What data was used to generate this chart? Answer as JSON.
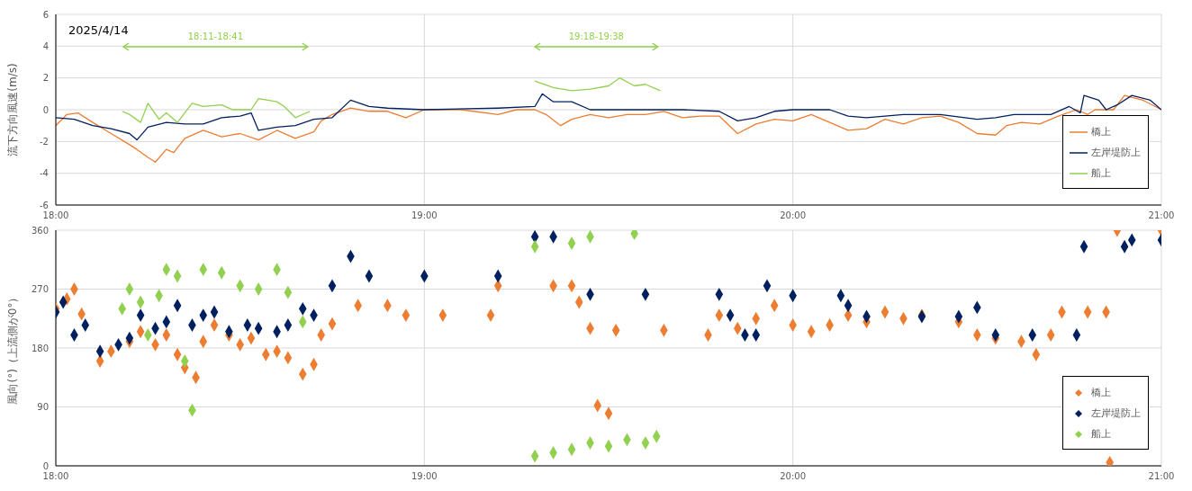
{
  "chart_data": [
    {
      "type": "line",
      "ylabel": "流下方向風速(m/s)",
      "xlim": [
        18,
        21
      ],
      "xticks": [
        {
          "value": 18,
          "label": "18:00"
        },
        {
          "value": 19,
          "label": "19:00"
        },
        {
          "value": 20,
          "label": "20:00"
        },
        {
          "value": 21,
          "label": "21:00"
        }
      ],
      "ylim": [
        -6,
        6
      ],
      "yticks": [
        -6,
        -4,
        -2,
        0,
        2,
        4,
        6
      ],
      "grid": true,
      "legend": "bottom right",
      "line_style": "solid",
      "annotations": [
        "2025/4/14",
        "18:11-18:41",
        "19:18-19:38"
      ],
      "series": [
        {
          "name": "橋上",
          "color": "#ed7d31",
          "x": [
            18.0,
            18.03,
            18.06,
            18.1,
            18.15,
            18.2,
            18.22,
            18.25,
            18.27,
            18.3,
            18.32,
            18.35,
            18.4,
            18.45,
            18.5,
            18.55,
            18.6,
            18.65,
            18.7,
            18.72,
            18.75,
            18.8,
            18.85,
            18.9,
            18.95,
            19.0,
            19.1,
            19.2,
            19.25,
            19.3,
            19.33,
            19.37,
            19.4,
            19.45,
            19.5,
            19.55,
            19.6,
            19.65,
            19.7,
            19.75,
            19.8,
            19.85,
            19.9,
            19.95,
            20.0,
            20.05,
            20.1,
            20.15,
            20.2,
            20.25,
            20.3,
            20.35,
            20.4,
            20.45,
            20.5,
            20.55,
            20.58,
            20.62,
            20.67,
            20.72,
            20.77,
            20.8,
            20.82,
            20.87,
            20.9,
            20.95,
            21.0
          ],
          "values": [
            -1.0,
            -0.3,
            -0.2,
            -0.8,
            -1.5,
            -2.2,
            -2.5,
            -3.0,
            -3.3,
            -2.5,
            -2.7,
            -1.8,
            -1.3,
            -1.7,
            -1.5,
            -1.9,
            -1.3,
            -1.8,
            -1.4,
            -0.7,
            -0.3,
            0.1,
            -0.1,
            -0.1,
            -0.5,
            0,
            0,
            -0.3,
            0,
            0,
            -0.3,
            -1.0,
            -0.6,
            -0.3,
            -0.5,
            -0.3,
            -0.3,
            -0.1,
            -0.5,
            -0.4,
            -0.4,
            -1.5,
            -0.9,
            -0.6,
            -0.7,
            -0.3,
            -0.8,
            -1.3,
            -1.2,
            -0.6,
            -0.9,
            -0.5,
            -0.4,
            -0.8,
            -1.5,
            -1.6,
            -1.0,
            -0.8,
            -0.9,
            -0.4,
            0,
            -0.3,
            0,
            0,
            0.9,
            0.6,
            0
          ]
        },
        {
          "name": "左岸堤防上",
          "color": "#002060",
          "x": [
            18.0,
            18.05,
            18.1,
            18.15,
            18.2,
            18.22,
            18.25,
            18.3,
            18.35,
            18.4,
            18.45,
            18.5,
            18.53,
            18.55,
            18.6,
            18.65,
            18.7,
            18.75,
            18.8,
            18.85,
            18.9,
            19.0,
            19.2,
            19.3,
            19.32,
            19.35,
            19.4,
            19.45,
            19.5,
            19.6,
            19.7,
            19.8,
            19.85,
            19.9,
            19.95,
            20.0,
            20.1,
            20.15,
            20.2,
            20.3,
            20.4,
            20.5,
            20.55,
            20.6,
            20.7,
            20.75,
            20.78,
            20.79,
            20.83,
            20.85,
            20.88,
            20.92,
            20.97,
            21.0
          ],
          "values": [
            -0.5,
            -0.6,
            -1.0,
            -1.2,
            -1.5,
            -1.9,
            -1.1,
            -0.8,
            -0.9,
            -0.9,
            -0.5,
            -0.4,
            -0.2,
            -1.3,
            -1.1,
            -1.0,
            -0.6,
            -0.5,
            0.6,
            0.2,
            0.1,
            0,
            0.1,
            0.2,
            1.0,
            0.5,
            0.5,
            0,
            0,
            0,
            0,
            -0.1,
            -0.7,
            -0.5,
            -0.1,
            0,
            0,
            -0.4,
            -0.5,
            -0.3,
            -0.3,
            -0.6,
            -0.5,
            -0.3,
            -0.3,
            0.2,
            -0.2,
            0.9,
            0.6,
            0,
            0.3,
            0.9,
            0.6,
            0
          ]
        },
        {
          "name": "船上",
          "color": "#92d050",
          "x": [
            18.18,
            18.2,
            18.23,
            18.25,
            18.28,
            18.3,
            18.33,
            18.37,
            18.4,
            18.45,
            18.48,
            18.53,
            18.55,
            18.6,
            18.62,
            18.65,
            18.69,
            19.0,
            19.3,
            19.35,
            19.4,
            19.45,
            19.5,
            19.53,
            19.57,
            19.6,
            19.64
          ],
          "values": [
            -0.1,
            -0.3,
            -0.8,
            0.4,
            -0.6,
            -0.2,
            -0.8,
            0.4,
            0.2,
            0.3,
            0.0,
            0.0,
            0.7,
            0.5,
            0.2,
            -0.5,
            -0.1,
            null,
            1.8,
            1.4,
            1.2,
            1.3,
            1.5,
            2.0,
            1.5,
            1.6,
            1.2
          ]
        }
      ]
    },
    {
      "type": "scatter",
      "ylabel": "風向(°)（上流側が0°）",
      "xlim": [
        18,
        21
      ],
      "xticks": [
        {
          "value": 18,
          "label": "18:00"
        },
        {
          "value": 19,
          "label": "19:00"
        },
        {
          "value": 20,
          "label": "20:00"
        },
        {
          "value": 21,
          "label": "21:00"
        }
      ],
      "ylim": [
        0,
        360
      ],
      "yticks": [
        0,
        90,
        180,
        270,
        360
      ],
      "grid": true,
      "legend": "bottom right",
      "marker": "diamond",
      "series": [
        {
          "name": "橋上",
          "color": "#ed7d31",
          "x": [
            18.0,
            18.03,
            18.05,
            18.07,
            18.12,
            18.15,
            18.2,
            18.23,
            18.27,
            18.3,
            18.33,
            18.35,
            18.38,
            18.4,
            18.43,
            18.47,
            18.5,
            18.53,
            18.57,
            18.6,
            18.63,
            18.67,
            18.7,
            18.72,
            18.75,
            18.82,
            18.9,
            18.95,
            19.05,
            19.18,
            19.2,
            19.35,
            19.4,
            19.42,
            19.45,
            19.47,
            19.5,
            19.52,
            19.65,
            19.77,
            19.8,
            19.85,
            19.9,
            19.95,
            20.0,
            20.05,
            20.1,
            20.15,
            20.2,
            20.25,
            20.3,
            20.35,
            20.45,
            20.5,
            20.55,
            20.62,
            20.66,
            20.7,
            20.73,
            20.8,
            20.85,
            20.86,
            20.88,
            21.0
          ],
          "values": [
            240,
            255,
            270,
            232,
            160,
            175,
            190,
            205,
            185,
            200,
            170,
            150,
            135,
            190,
            215,
            200,
            185,
            195,
            170,
            175,
            165,
            140,
            155,
            200,
            217,
            245,
            245,
            230,
            230,
            230,
            275,
            275,
            275,
            250,
            210,
            92,
            80,
            207,
            207,
            200,
            230,
            210,
            225,
            245,
            215,
            205,
            215,
            230,
            220,
            235,
            225,
            230,
            220,
            200,
            195,
            190,
            170,
            200,
            235,
            235,
            235,
            5,
            360,
            360
          ]
        },
        {
          "name": "左岸堤防上",
          "color": "#002060",
          "x": [
            18.0,
            18.02,
            18.05,
            18.08,
            18.12,
            18.17,
            18.2,
            18.23,
            18.27,
            18.3,
            18.33,
            18.37,
            18.4,
            18.43,
            18.47,
            18.52,
            18.55,
            18.6,
            18.63,
            18.67,
            18.7,
            18.75,
            18.8,
            18.85,
            19.0,
            19.2,
            19.3,
            19.35,
            19.45,
            19.6,
            19.8,
            19.83,
            19.87,
            19.9,
            19.93,
            20.0,
            20.13,
            20.15,
            20.2,
            20.35,
            20.45,
            20.5,
            20.55,
            20.65,
            20.77,
            20.79,
            20.9,
            20.92,
            21.0
          ],
          "values": [
            235,
            250,
            200,
            215,
            175,
            185,
            195,
            230,
            210,
            220,
            245,
            215,
            230,
            235,
            205,
            215,
            210,
            205,
            215,
            240,
            230,
            275,
            320,
            290,
            290,
            290,
            350,
            350,
            262,
            262,
            262,
            230,
            200,
            200,
            275,
            260,
            260,
            245,
            228,
            228,
            228,
            242,
            200,
            200,
            200,
            335,
            335,
            345,
            345
          ]
        },
        {
          "name": "船上",
          "color": "#92d050",
          "x": [
            18.18,
            18.2,
            18.23,
            18.25,
            18.28,
            18.3,
            18.33,
            18.35,
            18.37,
            18.4,
            18.45,
            18.5,
            18.55,
            18.6,
            18.63,
            18.67,
            19.3,
            19.4,
            19.45,
            19.57,
            19.3,
            19.35,
            19.4,
            19.45,
            19.5,
            19.55,
            19.6,
            19.63
          ],
          "values": [
            240,
            270,
            250,
            200,
            260,
            300,
            290,
            160,
            85,
            300,
            295,
            275,
            270,
            300,
            265,
            220,
            335,
            340,
            350,
            355,
            15,
            20,
            25,
            35,
            30,
            40,
            35,
            45
          ]
        }
      ]
    }
  ]
}
